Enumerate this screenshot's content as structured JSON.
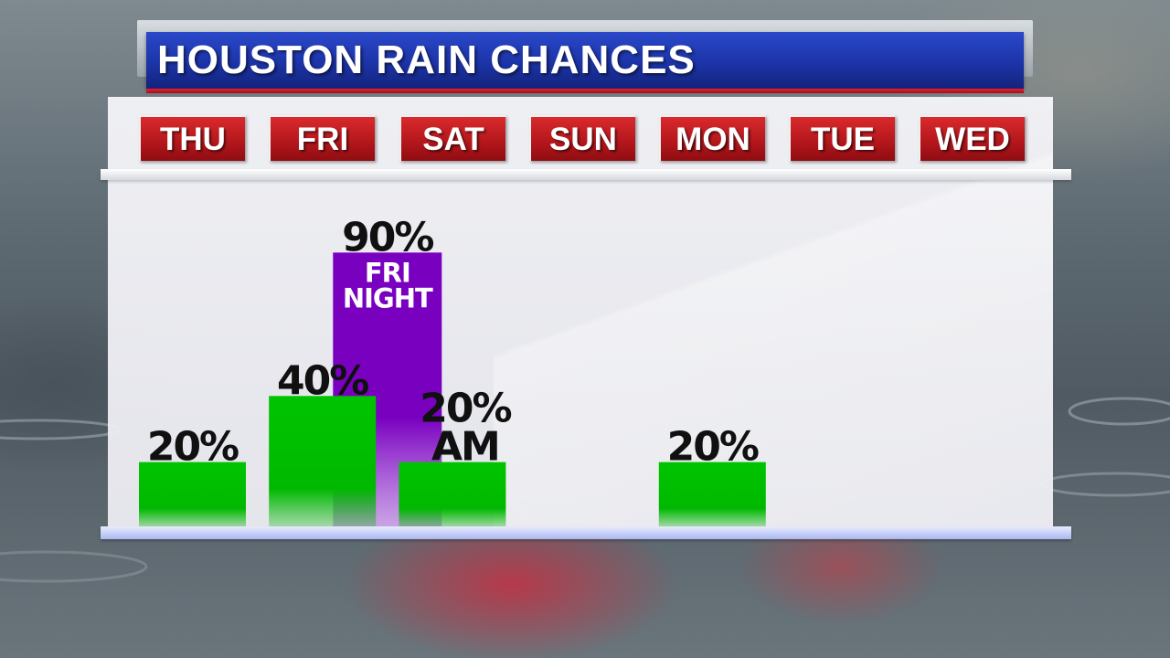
{
  "title": "HOUSTON RAIN CHANCES",
  "days": [
    "THU",
    "FRI",
    "SAT",
    "SUN",
    "MON",
    "TUE",
    "WED"
  ],
  "colors": {
    "title_bar": "#1c34a8",
    "day_tab": "#b2161b",
    "daytime_bar": "#00c000",
    "night_bar": "#7a00c0"
  },
  "chart_data": {
    "type": "bar",
    "title": "HOUSTON RAIN CHANCES",
    "xlabel": "",
    "ylabel": "",
    "ylim": [
      0,
      100
    ],
    "categories": [
      "THU",
      "FRI",
      "SAT",
      "SUN",
      "MON",
      "TUE",
      "WED"
    ],
    "values": [
      20,
      40,
      20,
      null,
      20,
      null,
      null
    ],
    "value_labels": [
      "20%",
      "40%",
      "20%",
      "",
      "20%",
      "",
      ""
    ],
    "sub_labels": [
      "",
      "",
      "AM",
      "",
      "",
      "",
      ""
    ],
    "extra_bars": [
      {
        "category": "FRI",
        "period": "FRI NIGHT",
        "value": 90,
        "label": "90%",
        "inner_label": [
          "FRI",
          "NIGHT"
        ]
      }
    ],
    "grid": false,
    "legend": "none"
  }
}
